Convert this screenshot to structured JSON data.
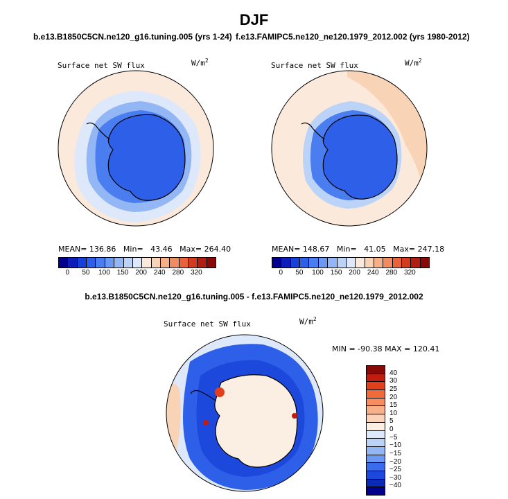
{
  "title": "DJF",
  "panels": {
    "left": {
      "case": "b.e13.B1850C5CN.ne120_g16.tuning.005 (yrs 1-24)",
      "variable": "Surface net SW flux",
      "units": "W/m",
      "units_exp": "2",
      "stats": {
        "mean_label": "MEAN=",
        "mean": "136.86",
        "min_label": "Min=",
        "min": "43.46",
        "max_label": "Max=",
        "max": "264.40"
      }
    },
    "right": {
      "case": "f.e13.FAMIPC5.ne120_ne120.1979_2012.002 (yrs 1980-2012)",
      "variable": "Surface net SW flux",
      "units": "W/m",
      "units_exp": "2",
      "stats": {
        "mean_label": "MEAN=",
        "mean": "148.67",
        "min_label": "Min=",
        "min": "41.05",
        "max_label": "Max=",
        "max": "247.18"
      }
    },
    "diff": {
      "title": "b.e13.B1850C5CN.ne120_g16.tuning.005 - f.e13.FAMIPC5.ne120_ne120.1979_2012.002",
      "variable": "Surface net SW flux",
      "units": "W/m",
      "units_exp": "2",
      "minmax": "MIN = -90.38  MAX = 120.41"
    }
  },
  "colorbar_top": {
    "colors": [
      "#00008c",
      "#0d1fb8",
      "#1640d8",
      "#2e5fe8",
      "#4a7ef0",
      "#6b99f2",
      "#93b6f5",
      "#bcd3f8",
      "#dde8fb",
      "#fbe9dc",
      "#f9d3b6",
      "#f5b08a",
      "#f08b62",
      "#e8623c",
      "#d23b20",
      "#b01d12",
      "#880a08"
    ],
    "ticks": [
      "0",
      "50",
      "100",
      "150",
      "200",
      "240",
      "280",
      "320"
    ]
  },
  "colorbar_diff": {
    "colors": [
      "#880a08",
      "#c01d10",
      "#e0401c",
      "#f06a3a",
      "#f58d60",
      "#f8b08a",
      "#fad3b8",
      "#fbeee2",
      "#dde8fb",
      "#bcd3f8",
      "#93b6f5",
      "#6b99f2",
      "#3a6cec",
      "#1c48dc",
      "#0a2ab8",
      "#00008c"
    ],
    "ticks": [
      "40",
      "30",
      "25",
      "20",
      "15",
      "10",
      "5",
      "0",
      "−5",
      "−10",
      "−15",
      "−20",
      "−25",
      "−30",
      "−40"
    ]
  }
}
